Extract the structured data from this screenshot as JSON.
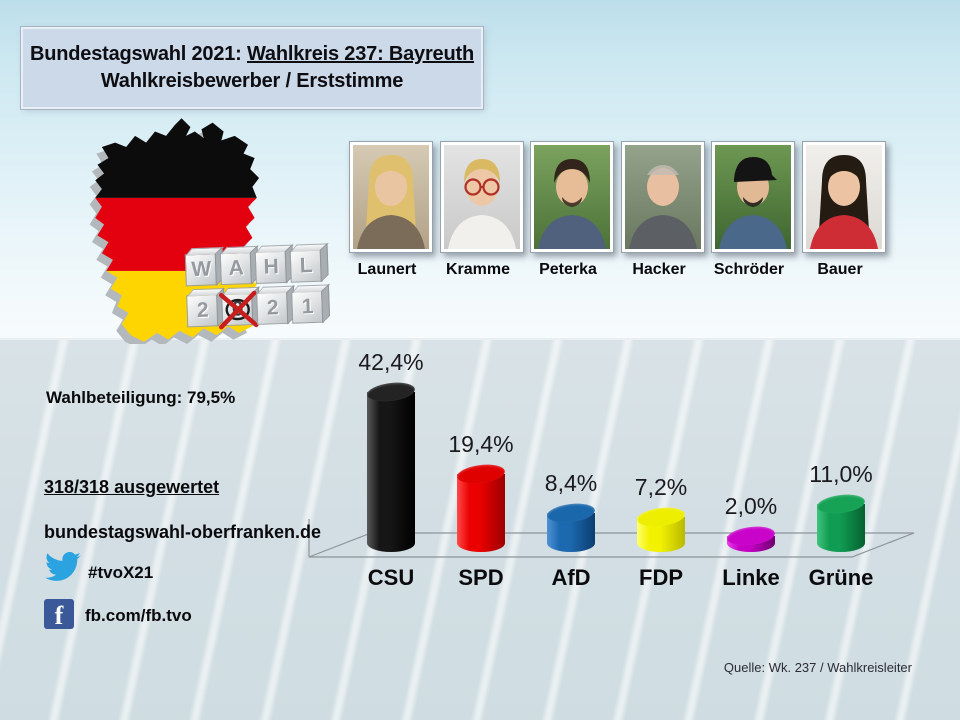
{
  "header": {
    "line1_prefix": "Bundestagswahl 2021: ",
    "line1_underlined": "Wahlkreis 237: Bayreuth",
    "line2": "Wahlkreisbewerber / Erststimme"
  },
  "dice": {
    "top_row": [
      "W",
      "A",
      "H",
      "L"
    ],
    "bottom_row": [
      "2",
      "0",
      "2",
      "1"
    ],
    "crossed_index": 1
  },
  "candidates": [
    {
      "name": "Launert",
      "bg1": "#d6cab4",
      "bg2": "#b1a287",
      "skin": "#eac5a2",
      "hair": "#dfc06e",
      "shirt": "#7b6c59",
      "hair_style": "long",
      "glasses": false,
      "beard": false
    },
    {
      "name": "Kramme",
      "bg1": "#e3e3e3",
      "bg2": "#c9c9c9",
      "skin": "#eec8a6",
      "hair": "#d9ba62",
      "shirt": "#f1f0ec",
      "hair_style": "short",
      "glasses": true,
      "beard": false
    },
    {
      "name": "Peterka",
      "bg1": "#7ba35e",
      "bg2": "#4c7239",
      "skin": "#e6bd97",
      "hair": "#32251b",
      "shirt": "#50617d",
      "hair_style": "short",
      "glasses": false,
      "beard": true
    },
    {
      "name": "Hacker",
      "bg1": "#95a28c",
      "bg2": "#69785f",
      "skin": "#e8bfa0",
      "hair": "#c2bcb2",
      "shirt": "#5c6064",
      "hair_style": "bald",
      "glasses": false,
      "beard": false
    },
    {
      "name": "Schröder",
      "bg1": "#6d9852",
      "bg2": "#3f6631",
      "skin": "#e2b995",
      "hair": "#141414",
      "shirt": "#49688a",
      "hair_style": "cap",
      "glasses": false,
      "beard": true
    },
    {
      "name": "Bauer",
      "bg1": "#f1efec",
      "bg2": "#dcd9d3",
      "skin": "#ecc4a4",
      "hair": "#241b12",
      "shirt": "#cf2d36",
      "hair_style": "long",
      "glasses": false,
      "beard": false
    }
  ],
  "stats": {
    "turnout": "Wahlbeteiligung: 79,5%",
    "counted": "318/318 ausgewertet",
    "website": "bundestagswahl-oberfranken.de",
    "twitter_tag": "#tvoX21",
    "facebook": "fb.com/fb.tvo"
  },
  "source": "Quelle: Wk. 237 / Wahlkreisleiter",
  "chart_data": {
    "type": "bar",
    "title": "Bundestagswahl 2021 Wahlkreis 237 Bayreuth – Erststimme",
    "categories": [
      "CSU",
      "SPD",
      "AfD",
      "FDP",
      "Linke",
      "Grüne"
    ],
    "values": [
      42.4,
      19.4,
      8.4,
      7.2,
      2.0,
      11.0
    ],
    "value_labels": [
      "42,4%",
      "19,4%",
      "8,4%",
      "7,2%",
      "2,0%",
      "11,0%"
    ],
    "unit": "%",
    "ylim": [
      0,
      45
    ],
    "grid": false,
    "legend": "none",
    "bar_style": "3d-cylinder",
    "colors": [
      {
        "name": "csu-black",
        "light": "#5a5a5a",
        "mid": "#161616",
        "dark": "#000000",
        "top": "#232323"
      },
      {
        "name": "spd-red",
        "light": "#ff4a4a",
        "mid": "#ea0000",
        "dark": "#9c0000",
        "top": "#df0000"
      },
      {
        "name": "afd-blue",
        "light": "#4e93d6",
        "mid": "#1c69b0",
        "dark": "#0b3d6f",
        "top": "#1b67ab"
      },
      {
        "name": "fdp-yellow",
        "light": "#ffff6e",
        "mid": "#f2f200",
        "dark": "#b9b900",
        "top": "#eeee00"
      },
      {
        "name": "linke-magenta",
        "light": "#e93fe9",
        "mid": "#c400c4",
        "dark": "#6f006f",
        "top": "#c903c9"
      },
      {
        "name": "gruene-green",
        "light": "#3fc47b",
        "mid": "#109c52",
        "dark": "#066130",
        "top": "#16a356"
      }
    ]
  }
}
